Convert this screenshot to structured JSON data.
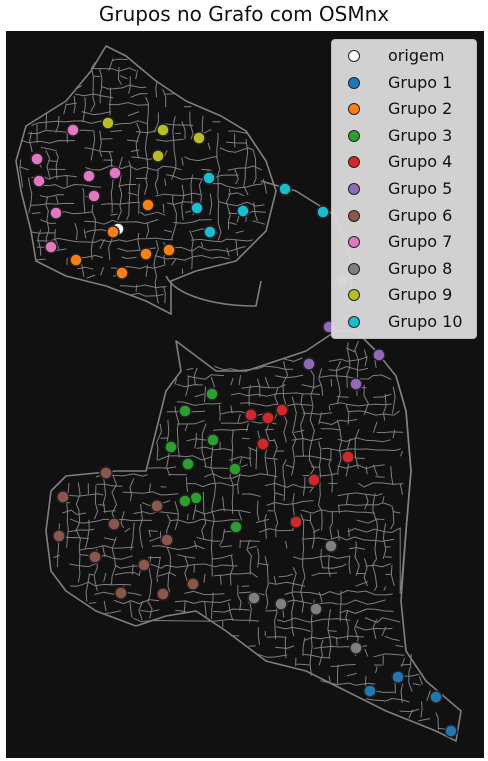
{
  "title": "Grupos no Grafo com OSMnx",
  "colors": {
    "background": "#111111",
    "street": "#7f7f7f"
  },
  "legend": {
    "items": [
      {
        "label": "origem",
        "color": "#ffffff"
      },
      {
        "label": "Grupo 1",
        "color": "#1f77b4"
      },
      {
        "label": "Grupo 2",
        "color": "#ff7f0e"
      },
      {
        "label": "Grupo 3",
        "color": "#2ca02c"
      },
      {
        "label": "Grupo 4",
        "color": "#d62728"
      },
      {
        "label": "Grupo 5",
        "color": "#9467bd"
      },
      {
        "label": "Grupo 6",
        "color": "#8c564b"
      },
      {
        "label": "Grupo 7",
        "color": "#e377c2"
      },
      {
        "label": "Grupo 8",
        "color": "#7f7f7f"
      },
      {
        "label": "Grupo 9",
        "color": "#bcbd22"
      },
      {
        "label": "Grupo 10",
        "color": "#17becf"
      }
    ]
  }
}
